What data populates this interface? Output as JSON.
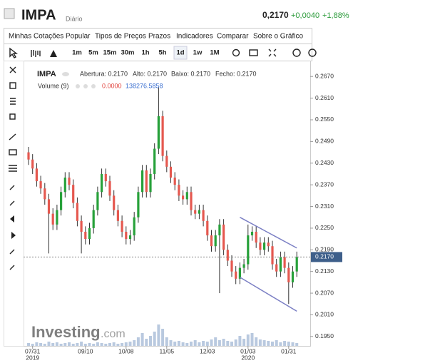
{
  "header": {
    "symbol": "IMPA",
    "interval": "Diário",
    "price": "0,2170",
    "change": "+0,0040",
    "change_pct": "+1,88%"
  },
  "menu": [
    "Minhas Cotações",
    "Popular",
    "Tipos de Preços",
    "Prazos",
    "Indicadores",
    "Comparar",
    "Sobre o Gráfico"
  ],
  "toolbar": {
    "timeframes": [
      "1m",
      "5m",
      "15m",
      "30m",
      "1h",
      "5h",
      "1d",
      "1w",
      "1M"
    ]
  },
  "watermark": {
    "brand": "Investing",
    "suffix": ".com"
  },
  "chart_data": {
    "type": "candlestick",
    "legend": {
      "symbol": "IMPA",
      "open": "Abertura: 0.2170",
      "high": "Alto: 0.2170",
      "low": "Baixo: 0.2170",
      "close": "Fecho: 0.2170",
      "volume": "Volume (9)",
      "volume_a": "0.0000",
      "volume_b": "138276.5858"
    },
    "categories": [
      null,
      "07/31",
      null,
      null,
      null,
      null,
      null,
      null,
      null,
      null,
      null,
      null,
      null,
      null,
      "09/10",
      null,
      null,
      null,
      null,
      null,
      null,
      null,
      null,
      null,
      "10/08",
      null,
      null,
      null,
      null,
      null,
      null,
      null,
      null,
      null,
      "11/05",
      null,
      null,
      null,
      null,
      null,
      null,
      null,
      null,
      null,
      "12/03",
      null,
      null,
      null,
      null,
      null,
      null,
      null,
      null,
      null,
      "01/03",
      null,
      null,
      null,
      null,
      null,
      null,
      null,
      null,
      null,
      "01/31",
      null,
      null
    ],
    "category_years": [
      null,
      "2019",
      null,
      null,
      null,
      null,
      null,
      null,
      null,
      null,
      null,
      null,
      null,
      null,
      null,
      null,
      null,
      null,
      null,
      null,
      null,
      null,
      null,
      null,
      null,
      null,
      null,
      null,
      null,
      null,
      null,
      null,
      null,
      null,
      null,
      null,
      null,
      null,
      null,
      null,
      null,
      null,
      null,
      null,
      null,
      null,
      null,
      null,
      null,
      null,
      null,
      null,
      null,
      null,
      "2020",
      null,
      null,
      null,
      null,
      null,
      null,
      null,
      null,
      null,
      null,
      null,
      null
    ],
    "open": [
      0.246,
      0.244,
      0.2415,
      0.238,
      0.236,
      0.233,
      0.229,
      0.226,
      0.23,
      0.235,
      0.239,
      0.237,
      0.232,
      0.227,
      0.224,
      0.222,
      0.225,
      0.23,
      0.235,
      0.24,
      0.238,
      0.234,
      0.23,
      0.227,
      0.224,
      0.222,
      0.223,
      0.228,
      0.235,
      0.241,
      0.235,
      0.24,
      0.247,
      0.256,
      0.245,
      0.242,
      0.239,
      0.237,
      0.234,
      0.233,
      0.235,
      0.23,
      0.229,
      0.23,
      0.227,
      0.223,
      0.22,
      0.223,
      0.226,
      0.219,
      0.216,
      0.213,
      0.211,
      0.214,
      0.215,
      0.223,
      0.224,
      0.221,
      0.219,
      0.221,
      0.22,
      0.215,
      0.213,
      0.217,
      0.214,
      0.21,
      0.213
    ],
    "high": [
      0.2475,
      0.2455,
      0.243,
      0.2395,
      0.2375,
      0.2345,
      0.2305,
      0.2315,
      0.2365,
      0.2405,
      0.2405,
      0.2385,
      0.2335,
      0.2285,
      0.2255,
      0.2265,
      0.2315,
      0.2365,
      0.2415,
      0.2415,
      0.2395,
      0.2355,
      0.2315,
      0.2285,
      0.2255,
      0.2245,
      0.2295,
      0.2365,
      0.2425,
      0.2425,
      0.2415,
      0.2485,
      0.264,
      0.2575,
      0.2465,
      0.2435,
      0.2405,
      0.2385,
      0.2355,
      0.2365,
      0.2365,
      0.2315,
      0.2315,
      0.2315,
      0.2285,
      0.2245,
      0.2245,
      0.2275,
      0.2275,
      0.2205,
      0.2175,
      0.2145,
      0.2155,
      0.2165,
      0.226,
      0.2255,
      0.2255,
      0.2225,
      0.2225,
      0.2225,
      0.2215,
      0.2165,
      0.2185,
      0.2185,
      0.2155,
      0.2145,
      0.2185
    ],
    "low": [
      0.2425,
      0.24,
      0.2365,
      0.2345,
      0.2315,
      0.218,
      0.2245,
      0.2245,
      0.2285,
      0.2335,
      0.2355,
      0.2305,
      0.2255,
      0.218,
      0.2205,
      0.2205,
      0.2235,
      0.2285,
      0.2335,
      0.2365,
      0.2325,
      0.2285,
      0.2255,
      0.2225,
      0.2205,
      0.2205,
      0.2215,
      0.2265,
      0.2335,
      0.2335,
      0.2335,
      0.2385,
      0.2455,
      0.2435,
      0.2405,
      0.2375,
      0.2355,
      0.2325,
      0.2315,
      0.2315,
      0.2285,
      0.2275,
      0.2275,
      0.2255,
      0.2215,
      0.2185,
      0.2185,
      0.207,
      0.2175,
      0.2145,
      0.2115,
      0.2095,
      0.2095,
      0.2125,
      0.2135,
      0.2215,
      0.2195,
      0.2175,
      0.2175,
      0.2185,
      0.2135,
      0.2115,
      0.2115,
      0.2125,
      0.204,
      0.2085,
      0.2115
    ],
    "close": [
      0.244,
      0.2415,
      0.238,
      0.236,
      0.233,
      0.229,
      0.226,
      0.23,
      0.235,
      0.239,
      0.237,
      0.232,
      0.227,
      0.224,
      0.222,
      0.225,
      0.23,
      0.235,
      0.24,
      0.238,
      0.234,
      0.23,
      0.227,
      0.224,
      0.222,
      0.223,
      0.228,
      0.235,
      0.241,
      0.235,
      0.24,
      0.247,
      0.256,
      0.245,
      0.242,
      0.239,
      0.237,
      0.234,
      0.233,
      0.235,
      0.23,
      0.229,
      0.23,
      0.227,
      0.223,
      0.22,
      0.223,
      0.226,
      0.219,
      0.216,
      0.213,
      0.211,
      0.214,
      0.215,
      0.223,
      0.224,
      0.221,
      0.219,
      0.221,
      0.22,
      0.215,
      0.213,
      0.217,
      0.214,
      0.21,
      0.213,
      0.217
    ],
    "volume": [
      4,
      3,
      5,
      4,
      3,
      6,
      4,
      5,
      3,
      4,
      5,
      3,
      4,
      6,
      3,
      4,
      3,
      5,
      4,
      3,
      4,
      5,
      3,
      4,
      5,
      6,
      8,
      12,
      18,
      10,
      14,
      20,
      30,
      24,
      12,
      8,
      6,
      7,
      5,
      4,
      6,
      8,
      5,
      7,
      6,
      9,
      12,
      8,
      10,
      7,
      6,
      9,
      14,
      10,
      16,
      18,
      12,
      9,
      8,
      7,
      6,
      8,
      5,
      7,
      6,
      5,
      4
    ],
    "volume_lim": [
      0,
      40
    ],
    "up_color": "#27a13a",
    "down_color": "#e5584f",
    "volume_color": "#b9c9df",
    "ylim": [
      0.1924,
      0.2704
    ],
    "yticks": [
      {
        "value": 0.267,
        "label": "0.2670"
      },
      {
        "value": 0.261,
        "label": "0.2610"
      },
      {
        "value": 0.255,
        "label": "0.2550"
      },
      {
        "value": 0.249,
        "label": "0.2490"
      },
      {
        "value": 0.243,
        "label": "0.2430"
      },
      {
        "value": 0.237,
        "label": "0.2370"
      },
      {
        "value": 0.231,
        "label": "0.2310"
      },
      {
        "value": 0.225,
        "label": "0.2250"
      },
      {
        "value": 0.219,
        "label": "0.2190"
      },
      {
        "value": 0.213,
        "label": "0.2130"
      },
      {
        "value": 0.207,
        "label": "0.2070"
      },
      {
        "value": 0.201,
        "label": "0.2010"
      },
      {
        "value": 0.195,
        "label": "0.1950"
      }
    ],
    "last_price": {
      "value": 0.217,
      "label": "0.2170"
    },
    "trendlines": [
      {
        "start_index": 52,
        "start": 0.228,
        "end_index": 66,
        "end": 0.2195
      },
      {
        "start_index": 52,
        "start": 0.2114,
        "end_index": 66,
        "end": 0.202
      }
    ],
    "trendline_color": "#7b7fc4"
  }
}
